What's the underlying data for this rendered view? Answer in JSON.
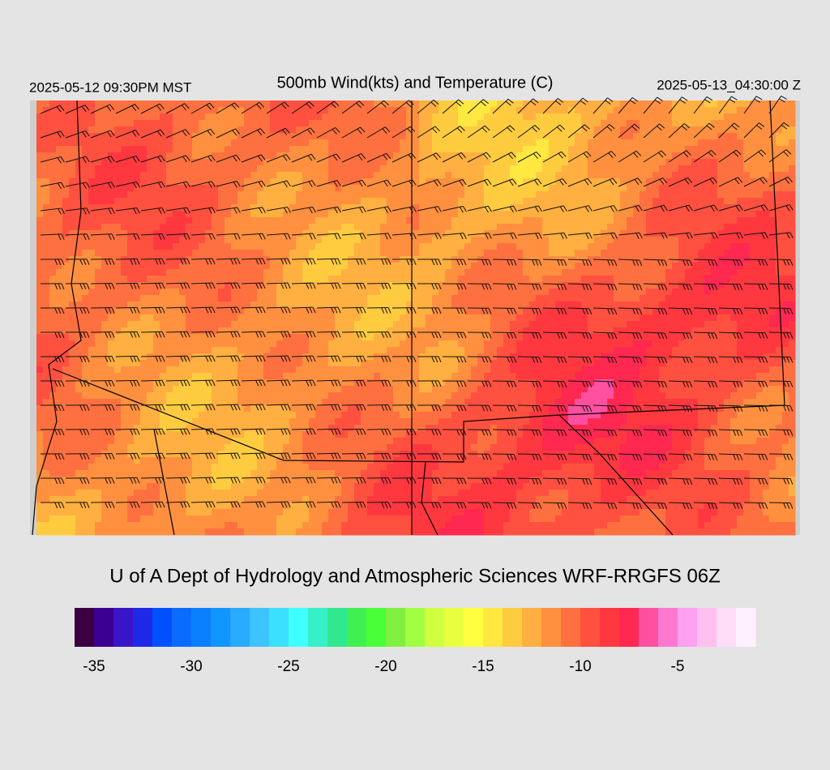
{
  "header": {
    "local_time": "2025-05-12 09:30PM MST",
    "title": "500mb Wind(kts) and Temperature (C)",
    "utc_time": "2025-05-13_04:30:00 Z"
  },
  "credit": "U of A Dept of Hydrology and Atmospheric Sciences WRF-RRGFS 06Z",
  "colorbar": {
    "range": [
      -36,
      -1
    ],
    "ticks": [
      -35,
      -30,
      -25,
      -20,
      -15,
      -10,
      -5
    ],
    "colors": [
      "#3a0040",
      "#3c0090",
      "#3a14c8",
      "#1e28e6",
      "#0050ff",
      "#0a6cff",
      "#0a80ff",
      "#1096ff",
      "#28aaff",
      "#3cc4ff",
      "#3ce0ff",
      "#40ffff",
      "#38f0c8",
      "#30e890",
      "#40f050",
      "#48ff38",
      "#80f040",
      "#a0ff40",
      "#d0ff40",
      "#e8ff40",
      "#ffff40",
      "#ffe840",
      "#ffcc40",
      "#ffb040",
      "#ff9040",
      "#ff7040",
      "#ff5040",
      "#ff3840",
      "#ff2850",
      "#ff50a0",
      "#ff78d0",
      "#ffa0f0",
      "#ffc0f0",
      "#ffdcf8",
      "#fff0ff"
    ]
  }
}
